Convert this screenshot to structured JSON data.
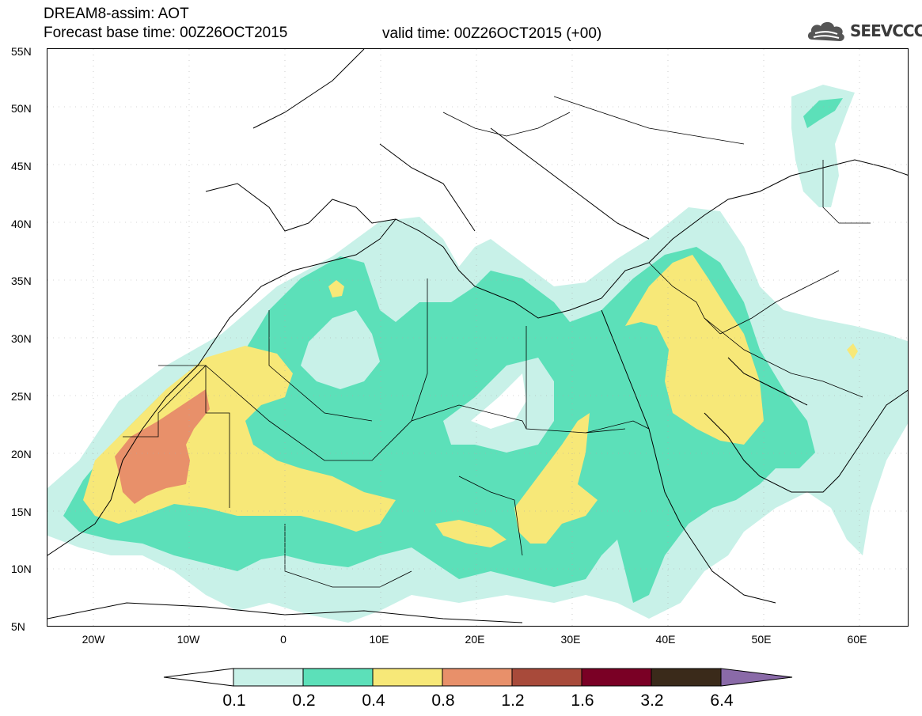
{
  "header": {
    "title_line1": "DREAM8-assim: AOT",
    "title_line2": "Forecast base time: 00Z26OCT2015",
    "valid_time": "valid time: 00Z26OCT2015 (+00)",
    "logo_text": "SEEVCCC",
    "logo_icon": "cloud-icon"
  },
  "axes": {
    "lat_labels": [
      "55N",
      "50N",
      "45N",
      "40N",
      "35N",
      "30N",
      "25N",
      "20N",
      "15N",
      "10N",
      "5N"
    ],
    "lon_labels": [
      "20W",
      "10W",
      "0",
      "10E",
      "20E",
      "30E",
      "40E",
      "50E",
      "60E"
    ]
  },
  "colorbar": {
    "labels": [
      "0.1",
      "0.2",
      "0.4",
      "0.8",
      "1.2",
      "1.6",
      "3.2",
      "6.4"
    ],
    "colors": {
      "under": "#ffffff",
      "c1": "#c8f1e8",
      "c2": "#5ce0b9",
      "c3": "#f7e878",
      "c4": "#e8906a",
      "c5": "#a84a3a",
      "c6": "#7a0025",
      "c7": "#3a2a1a",
      "over": "#8a6aa8"
    }
  },
  "map_colors": {
    "ocean": "#ffffff",
    "land": "#ffffff",
    "coast": "#000000"
  }
}
